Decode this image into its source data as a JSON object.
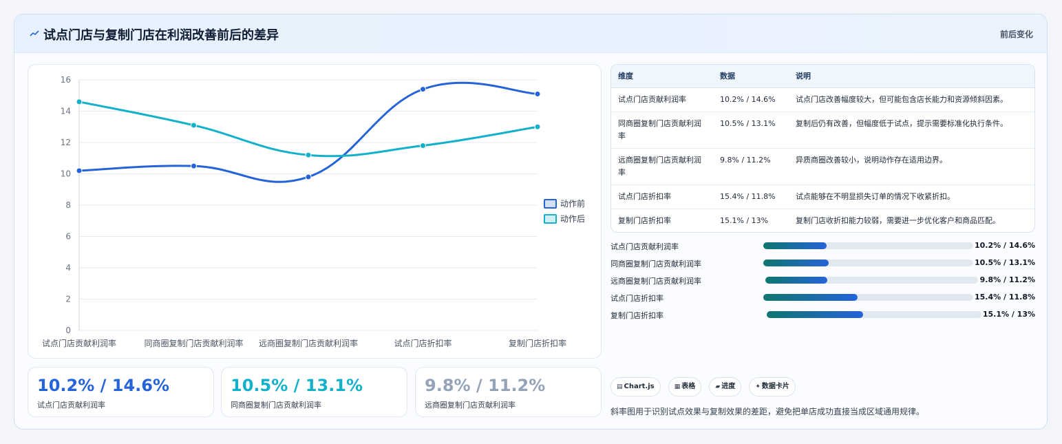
{
  "header": {
    "title": "试点门店与复制门店在利润改善前后的差异",
    "badge": "前后变化",
    "icon": "trend-icon"
  },
  "chart_data": {
    "type": "line",
    "categories": [
      "试点门店贡献利润率",
      "同商圈复制门店贡献利润率",
      "远商圈复制门店贡献利润率",
      "试点门店折扣率",
      "复制门店折扣率"
    ],
    "series": [
      {
        "name": "动作前",
        "values": [
          10.2,
          10.5,
          9.8,
          15.4,
          15.1
        ],
        "color": "#2563d9"
      },
      {
        "name": "动作后",
        "values": [
          14.6,
          13.1,
          11.2,
          11.8,
          13.0
        ],
        "color": "#13b1c9"
      }
    ],
    "yticks": [
      0,
      2,
      4,
      6,
      8,
      10,
      12,
      14,
      16
    ],
    "ylim": [
      0,
      16
    ],
    "grid": true,
    "legend": "right"
  },
  "stats": [
    {
      "value": "10.2% / 14.6%",
      "label": "试点门店贡献利润率",
      "color": "#2563d9"
    },
    {
      "value": "10.5% / 13.1%",
      "label": "同商圈复制门店贡献利润率",
      "color": "#13b1c9"
    },
    {
      "value": "9.8% / 11.2%",
      "label": "远商圈复制门店贡献利润率",
      "color": "#94a3b8"
    }
  ],
  "table": {
    "headers": [
      "维度",
      "数据",
      "说明"
    ],
    "rows": [
      [
        "试点门店贡献利润率",
        "10.2% / 14.6%",
        "试点门店改善幅度较大，但可能包含店长能力和资源倾斜因素。"
      ],
      [
        "同商圈复制门店贡献利润率",
        "10.5% / 13.1%",
        "复制后仍有改善，但幅度低于试点，提示需要标准化执行条件。"
      ],
      [
        "远商圈复制门店贡献利润率",
        "9.8% / 11.2%",
        "异质商圈改善较小，说明动作存在适用边界。"
      ],
      [
        "试点门店折扣率",
        "15.4% / 11.8%",
        "试点能够在不明显损失订单的情况下收紧折扣。"
      ],
      [
        "复制门店折扣率",
        "15.1% / 13%",
        "复制门店收折扣能力较弱，需要进一步优化客户和商品匹配。"
      ]
    ]
  },
  "bars": [
    {
      "label": "试点门店贡献利润率",
      "value": "10.2% / 14.6%",
      "fill": 0.3
    },
    {
      "label": "同商圈复制门店贡献利润率",
      "value": "10.5% / 13.1%",
      "fill": 0.31
    },
    {
      "label": "远商圈复制门店贡献利润率",
      "value": "9.8% / 11.2%",
      "fill": 0.29
    },
    {
      "label": "试点门店折扣率",
      "value": "15.4% / 11.8%",
      "fill": 0.45
    },
    {
      "label": "复制门店折扣率",
      "value": "15.1% / 13%",
      "fill": 0.45
    }
  ],
  "tags": [
    {
      "icon": "chart-icon",
      "glyph": "▤",
      "label": "Chart.js"
    },
    {
      "icon": "table-icon",
      "glyph": "▦",
      "label": "表格"
    },
    {
      "icon": "progress-icon",
      "glyph": "▰",
      "label": "进度"
    },
    {
      "icon": "card-icon",
      "glyph": "✦",
      "label": "数据卡片"
    }
  ],
  "note": "斜率图用于识别试点效果与复制效果的差距，避免把单店成功直接当成区域通用规律。"
}
